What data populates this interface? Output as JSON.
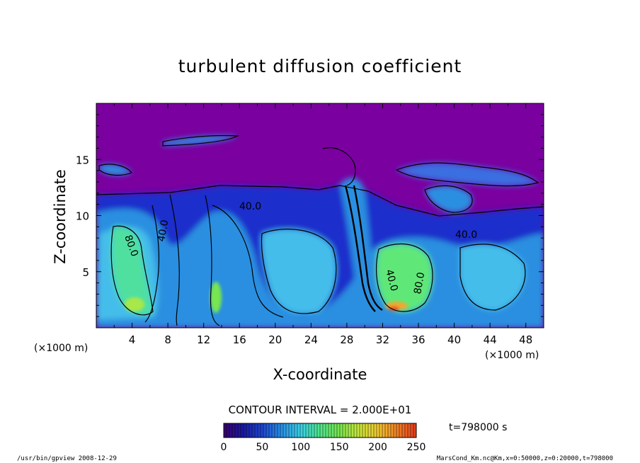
{
  "chart_data": {
    "type": "heatmap",
    "title": "turbulent diffusion coefficient",
    "xlabel": "X-coordinate",
    "ylabel": "Z-coordinate",
    "x_unit_left": "(×1000 m)",
    "x_unit_right": "(×1000 m)",
    "xlim": [
      0,
      50
    ],
    "ylim": [
      0,
      20
    ],
    "x_ticks": [
      "4",
      "8",
      "12",
      "16",
      "20",
      "24",
      "28",
      "32",
      "36",
      "40",
      "44",
      "48"
    ],
    "y_ticks": [
      "5",
      "10",
      "15"
    ],
    "contour_interval_label": "CONTOUR INTERVAL = 2.000E+01",
    "contour_labels": [
      "80.0",
      "40.0",
      "40.0",
      "80.0",
      "40.0",
      "40.0"
    ],
    "colorbar": {
      "min": 0,
      "max": 250,
      "ticks": [
        "0",
        "50",
        "100",
        "150",
        "200",
        "250"
      ],
      "colors": [
        "#3a006e",
        "#1a1aa0",
        "#1e46d2",
        "#2891e6",
        "#3cd2e6",
        "#50e68c",
        "#78e650",
        "#c8e63c",
        "#f0c832",
        "#f08228",
        "#e63c1e"
      ]
    },
    "background_color": "#7a00a0",
    "time_label": "t=798000 s",
    "footer_left": "/usr/bin/gpview  2008-12-29",
    "footer_right": "MarsCond_Km.nc@Km,x=0:50000,z=0:20000,t=798000"
  }
}
